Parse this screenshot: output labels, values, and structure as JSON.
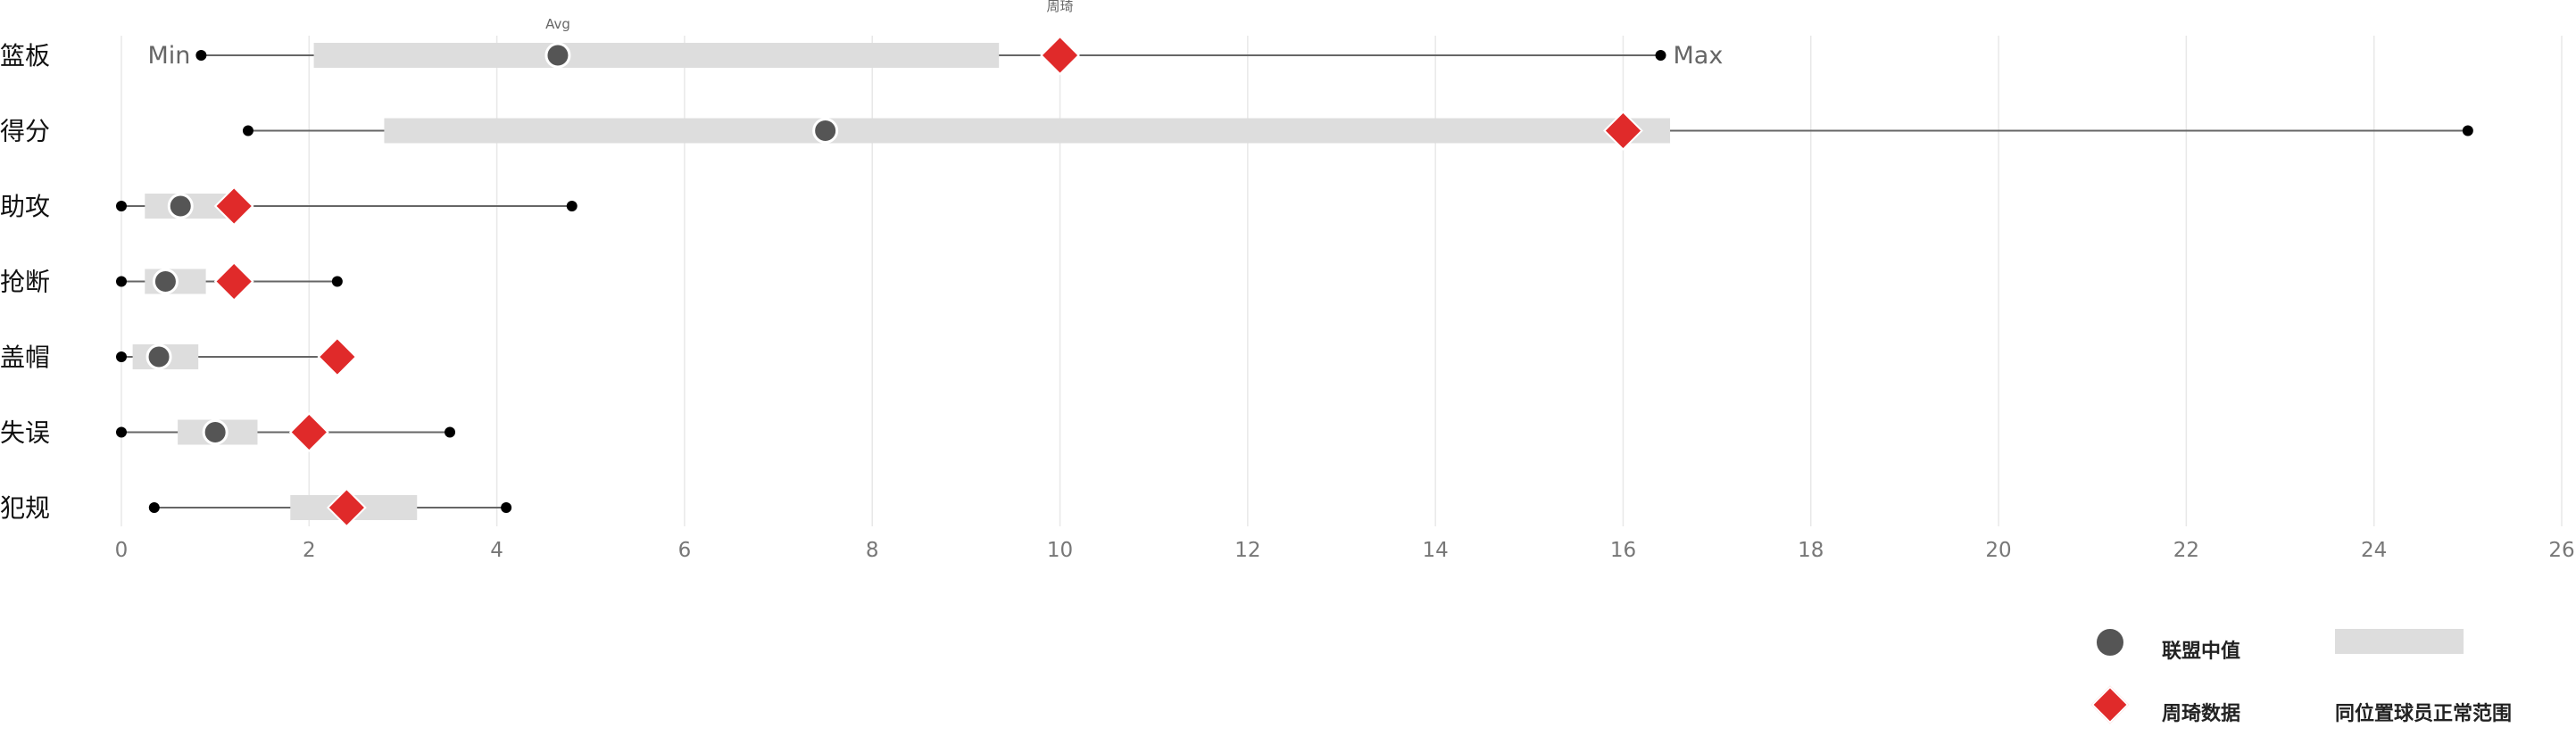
{
  "chart_data": {
    "type": "bullet-range",
    "categories": [
      "篮板",
      "得分",
      "助攻",
      "抢断",
      "盖帽",
      "失误",
      "犯规"
    ],
    "series": [
      {
        "name": "Min",
        "values": [
          0.85,
          1.35,
          0.0,
          0.0,
          0.0,
          0.0,
          0.35
        ]
      },
      {
        "name": "Max",
        "values": [
          16.4,
          25.0,
          4.8,
          2.3,
          2.3,
          3.5,
          4.1
        ]
      },
      {
        "name": "同位置球员正常范围",
        "low": [
          2.05,
          2.8,
          0.25,
          0.25,
          0.12,
          0.6,
          1.8
        ],
        "high": [
          9.35,
          16.5,
          1.15,
          0.9,
          0.82,
          1.45,
          3.15
        ]
      },
      {
        "name": "联盟中值",
        "values": [
          4.65,
          7.5,
          0.63,
          0.47,
          0.4,
          1.0,
          null
        ]
      },
      {
        "name": "周琦数据",
        "values": [
          10.0,
          16.0,
          1.2,
          1.2,
          2.3,
          2.0,
          2.4
        ]
      }
    ],
    "xlim": [
      0,
      26
    ],
    "xticks": [
      0,
      2,
      4,
      6,
      8,
      10,
      12,
      14,
      16,
      18,
      20,
      22,
      24,
      26
    ],
    "grid": "vertical",
    "annotations": {
      "min": "Min",
      "max": "Max",
      "avg": "Avg",
      "player": "周琦"
    },
    "legend_position": "bottom-right"
  },
  "legend": {
    "median_label": "联盟中值",
    "player_label": "周琦数据",
    "range_label": "同位置球员正常范围"
  },
  "colors": {
    "range": "#dddddd",
    "median": "#555555",
    "player": "#e02a2a",
    "whisker": "#666666",
    "endpoint": "#000000",
    "grid": "#e8e8e8",
    "tick_text": "#777777",
    "category_text": "#111111"
  }
}
